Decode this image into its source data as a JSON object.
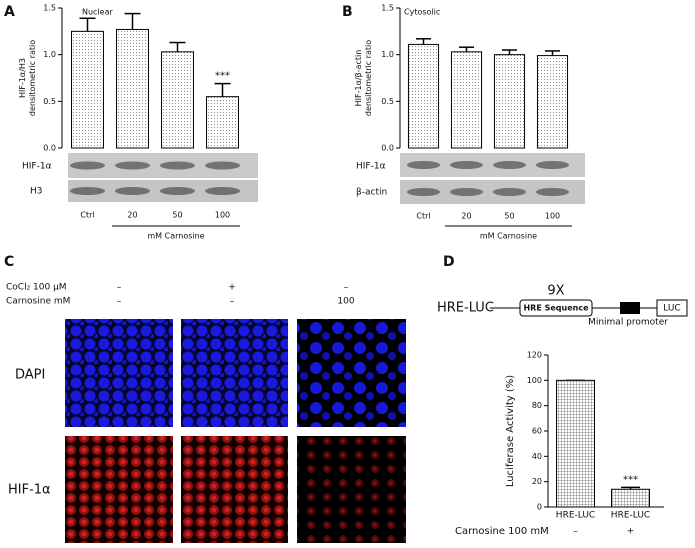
{
  "chart_data": [
    {
      "type": "bar",
      "title": "Nuclear",
      "ylabel": [
        "HIF-1α/H3",
        "densitometric ratio"
      ],
      "categories": [
        "Ctrl",
        "20",
        "50",
        "100"
      ],
      "values": [
        1.25,
        1.27,
        1.03,
        0.55
      ],
      "errors": [
        0.14,
        0.17,
        0.1,
        0.14
      ],
      "significance": [
        null,
        null,
        null,
        "***"
      ],
      "xlabel": "mM Carnosine",
      "color": "#ffffff",
      "ylim": [
        0,
        1.5
      ],
      "yticks": [
        {
          "value": 0,
          "label": "0.0"
        },
        {
          "value": 0.5,
          "label": "0.5"
        },
        {
          "value": 1,
          "label": "1.0"
        },
        {
          "value": 1.5,
          "label": "1.5"
        }
      ]
    },
    {
      "type": "bar",
      "title": "Cytosolic",
      "ylabel": [
        "HIF-1α/β-actin",
        "densitometric ratio"
      ],
      "categories": [
        "Ctrl",
        "20",
        "50",
        "100"
      ],
      "values": [
        1.11,
        1.03,
        1.0,
        0.99
      ],
      "errors": [
        0.06,
        0.05,
        0.05,
        0.05
      ],
      "xlabel": "mM Carnosine",
      "color": "#ffffff",
      "ylim": [
        0,
        1.5
      ],
      "yticks": [
        {
          "value": 0,
          "label": "0.0"
        },
        {
          "value": 0.5,
          "label": "0.5"
        },
        {
          "value": 1,
          "label": "1.0"
        },
        {
          "value": 1.5,
          "label": "1.5"
        }
      ]
    },
    {
      "type": "bar",
      "ylabel": [
        "Luciferase Activity (%)"
      ],
      "categories": [
        "HRE-LUC",
        "HRE-LUC"
      ],
      "values": [
        100,
        14
      ],
      "errors": [
        0,
        1.5
      ],
      "significance": [
        null,
        "***"
      ],
      "treatment": {
        "name": "Carnosine 100 mM",
        "levels": [
          "–",
          "+"
        ]
      },
      "color": "#ffffff",
      "ylim": [
        0,
        120
      ],
      "yticks": [
        0,
        20,
        40,
        60,
        80,
        100,
        120
      ]
    }
  ],
  "panels": {
    "a": {
      "label": "A",
      "blots": [
        "HIF-1α",
        "H3"
      ]
    },
    "b": {
      "label": "B",
      "blots": [
        "HIF-1α",
        "β-actin"
      ]
    },
    "c": {
      "label": "C",
      "conditions": [
        {
          "name": "CoCl₂ 100 µM",
          "levels": [
            "–",
            "+",
            "–"
          ]
        },
        {
          "name": "Carnosine mM",
          "levels": [
            "–",
            "–",
            "100"
          ]
        }
      ],
      "rows": [
        "DAPI",
        "HIF-1α"
      ]
    },
    "d": {
      "label": "D",
      "construct": "HRE-LUC",
      "repeat": "9X",
      "element": "HRE  Sequence",
      "promoter": "Minimal promoter",
      "reporter": "LUC"
    }
  }
}
